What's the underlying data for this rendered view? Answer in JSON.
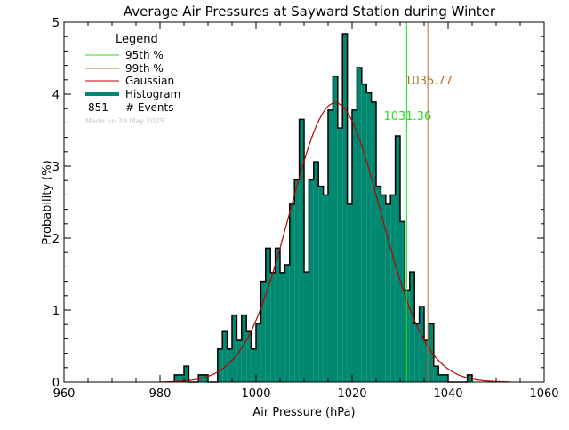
{
  "chart_data": {
    "type": "bar",
    "title": "Average Air Pressures at Sayward Station during Winter",
    "xlabel": "Air Pressure (hPa)",
    "ylabel": "Probability (%)",
    "xlim": [
      960,
      1060
    ],
    "ylim": [
      0,
      5
    ],
    "xticks": [
      "960",
      "980",
      "1000",
      "1020",
      "1040",
      "1060"
    ],
    "yticks": [
      "0",
      "1",
      "2",
      "3",
      "4",
      "5"
    ],
    "bin_width": 1,
    "bins": [
      983,
      984,
      985,
      986,
      987,
      988,
      989,
      990,
      991,
      992,
      993,
      994,
      995,
      996,
      997,
      998,
      999,
      1000,
      1001,
      1002,
      1003,
      1004,
      1005,
      1006,
      1007,
      1008,
      1009,
      1010,
      1011,
      1012,
      1013,
      1014,
      1015,
      1016,
      1017,
      1018,
      1019,
      1020,
      1021,
      1022,
      1023,
      1024,
      1025,
      1026,
      1027,
      1028,
      1029,
      1030,
      1031,
      1032,
      1033,
      1034,
      1035,
      1036,
      1037,
      1038,
      1039,
      1040,
      1041,
      1042,
      1043,
      1044
    ],
    "values": [
      0.1,
      0.1,
      0.22,
      0,
      0,
      0.1,
      0.1,
      0,
      0,
      0.46,
      0.7,
      0.46,
      0.93,
      0.58,
      0.93,
      0.7,
      0.46,
      0.81,
      1.4,
      1.86,
      1.52,
      1.86,
      1.52,
      1.63,
      2.47,
      2.81,
      3.65,
      1.53,
      2.81,
      3.06,
      2.72,
      2.6,
      3.78,
      4.25,
      3.53,
      4.84,
      2.47,
      3.78,
      4.37,
      4.14,
      4.02,
      3.89,
      2.72,
      2.6,
      2.47,
      2.6,
      3.42,
      2.23,
      1.28,
      1.53,
      0.81,
      1.05,
      0.58,
      0.81,
      0.22,
      0.1,
      0.1,
      0,
      0,
      0,
      0,
      0.1
    ],
    "gaussian": {
      "mean": 1016.5,
      "sigma": 9.5,
      "peak": 3.88,
      "range": [
        980,
        1053
      ]
    },
    "percentiles": [
      {
        "name": "95th %",
        "value": 1031.36,
        "label": "1031.36",
        "color": "#22dd22"
      },
      {
        "name": "99th %",
        "value": 1035.77,
        "label": "1035.77",
        "color": "#b8702a"
      }
    ],
    "legend": {
      "title": "Legend",
      "placement": "top-left",
      "items": [
        {
          "label": "95th %",
          "color": "#22dd22"
        },
        {
          "label": "99th %",
          "color": "#b8702a"
        },
        {
          "label": "Gaussian",
          "color": "#bb0000"
        },
        {
          "label": "Histogram",
          "color": "#008870"
        }
      ],
      "events_count": "851",
      "events_label": "# Events",
      "footer": "Made on 29 May 2025"
    }
  }
}
